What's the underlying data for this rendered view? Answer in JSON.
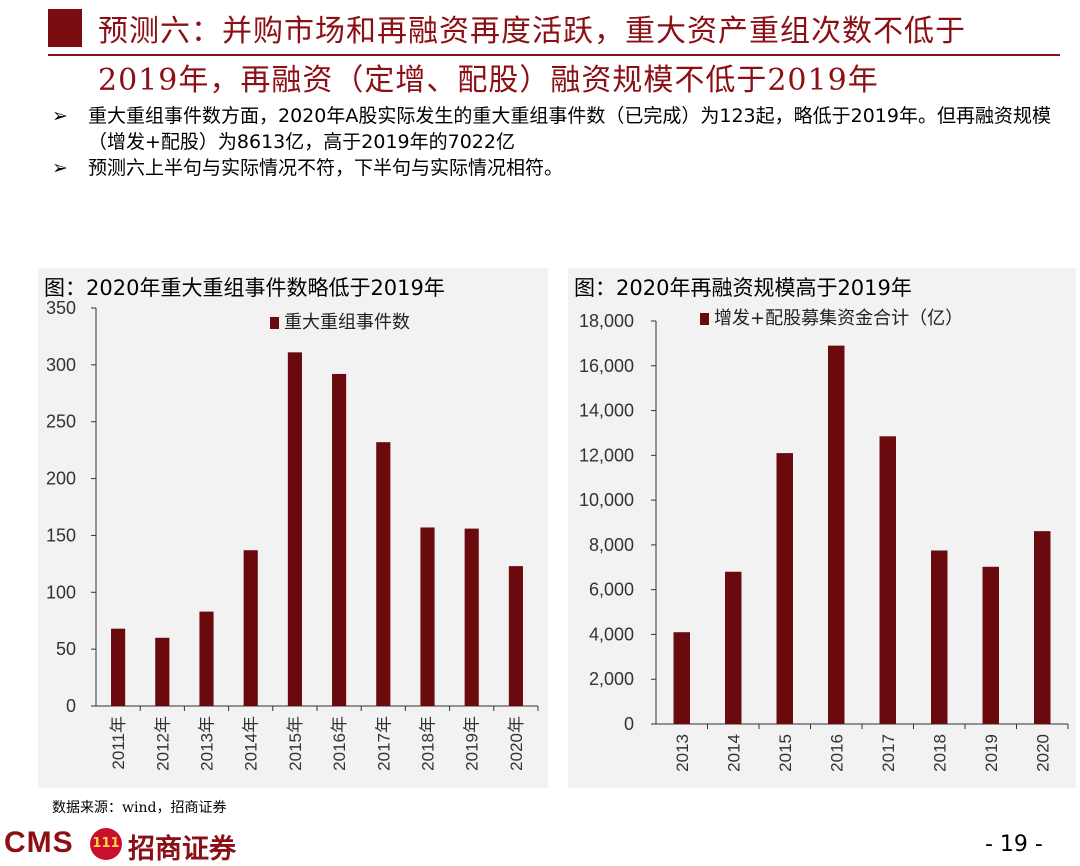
{
  "header": {
    "line1": "预测六：并购市场和再融资再度活跃，重大资产重组次数不低于",
    "line2": "2019年，再融资（定增、配股）融资规模不低于2019年"
  },
  "bullets": [
    {
      "arrow": "➢",
      "text": "重大重组事件数方面，2020年A股实际发生的重大重组事件数（已完成）为123起，略低于2019年。但再融资规模（增发+配股）为8613亿，高于2019年的7022亿"
    },
    {
      "arrow": "➢",
      "text": "预测六上半句与实际情况不符，下半句与实际情况相符。"
    }
  ],
  "source": "数据来源：wind，招商证券",
  "footer": {
    "logo_text": "CMS",
    "badge_text": "111",
    "company": "招商证券",
    "page": "- 19 -"
  },
  "colors": {
    "bar": "#6b0a0e",
    "title": "#8b0f14",
    "panel": "#f2f2f2"
  },
  "chart_data": [
    {
      "type": "bar",
      "title": "图：2020年重大重组事件数略低于2019年",
      "categories": [
        "2011年",
        "2012年",
        "2013年",
        "2014年",
        "2015年",
        "2016年",
        "2017年",
        "2018年",
        "2019年",
        "2020年"
      ],
      "series": [
        {
          "name": "重大重组事件数",
          "values": [
            68,
            60,
            83,
            137,
            311,
            292,
            232,
            157,
            156,
            123
          ]
        }
      ],
      "ylim": [
        0,
        350
      ],
      "yticks": [
        0,
        50,
        100,
        150,
        200,
        250,
        300,
        350
      ],
      "ytick_labels": [
        "0",
        "50",
        "100",
        "150",
        "200",
        "250",
        "300",
        "350"
      ],
      "legend": "top-left",
      "grid": false
    },
    {
      "type": "bar",
      "title": "图：2020年再融资规模高于2019年",
      "categories": [
        "2013",
        "2014",
        "2015",
        "2016",
        "2017",
        "2018",
        "2019",
        "2020"
      ],
      "series": [
        {
          "name": "增发+配股募集资金合计（亿）",
          "values": [
            4100,
            6800,
            12100,
            16900,
            12850,
            7750,
            7022,
            8613
          ]
        }
      ],
      "ylim": [
        0,
        18000
      ],
      "yticks": [
        0,
        2000,
        4000,
        6000,
        8000,
        10000,
        12000,
        14000,
        16000,
        18000
      ],
      "ytick_labels": [
        "0",
        "2,000",
        "4,000",
        "6,000",
        "8,000",
        "10,000",
        "12,000",
        "14,000",
        "16,000",
        "18,000"
      ],
      "legend": "top-left",
      "grid": false
    }
  ]
}
